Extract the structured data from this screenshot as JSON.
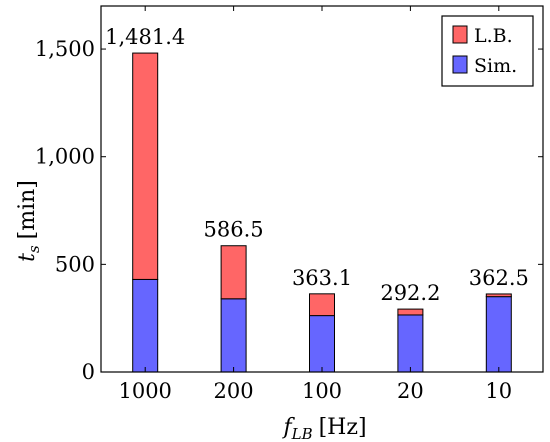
{
  "chart_data": {
    "type": "bar",
    "stacked": true,
    "categories": [
      "1000",
      "200",
      "100",
      "20",
      "10"
    ],
    "series": [
      {
        "name": "Sim.",
        "color": "#6666ff",
        "values": [
          430,
          340,
          262,
          265,
          350
        ]
      },
      {
        "name": "L.B.",
        "color": "#ff6666",
        "values": [
          1051.4,
          246.5,
          101.1,
          27.2,
          12.5
        ]
      }
    ],
    "totals": [
      1481.4,
      586.5,
      363.1,
      292.2,
      362.5
    ],
    "total_labels": [
      "1,481.4",
      "586.5",
      "363.1",
      "292.2",
      "362.5"
    ],
    "ylim": [
      0,
      1700
    ],
    "yticks": [
      0,
      500,
      1000,
      1500
    ],
    "ytick_labels": [
      "0",
      "500",
      "1,000",
      "1,500"
    ],
    "xlabel": {
      "symbol": "f",
      "subscript": "LB",
      "unit": "[Hz]"
    },
    "ylabel": {
      "symbol": "t",
      "subscript": "s",
      "unit": "[min]"
    },
    "legend": {
      "placement": "top-right",
      "entries": [
        "L.B.",
        "Sim."
      ]
    },
    "grid": false
  }
}
